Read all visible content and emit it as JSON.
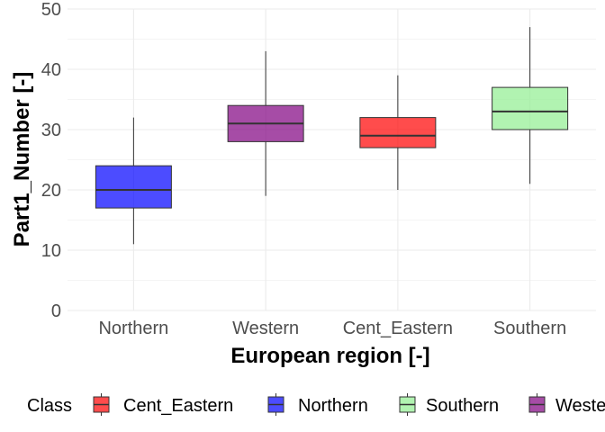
{
  "chart_data": {
    "type": "boxplot",
    "title": "",
    "xlabel": "European region [-]",
    "ylabel": "Part1_Number [-]",
    "ylim": [
      0,
      50
    ],
    "yticks": [
      0,
      10,
      20,
      30,
      40,
      50
    ],
    "grid": true,
    "legend_position": "bottom",
    "legend_title": "Class",
    "categories": [
      "Northern",
      "Western",
      "Cent_Eastern",
      "Southern"
    ],
    "boxes": [
      {
        "category": "Northern",
        "class": "Northern",
        "min": 11,
        "q1": 17,
        "median": 20,
        "q3": 24,
        "max": 32,
        "color": "#0000FF"
      },
      {
        "category": "Western",
        "class": "Western",
        "min": 19,
        "q1": 28,
        "median": 31,
        "q3": 34,
        "max": 43,
        "color": "#800080"
      },
      {
        "category": "Cent_Eastern",
        "class": "Cent_Eastern",
        "min": 20,
        "q1": 27,
        "median": 29,
        "q3": 32,
        "max": 39,
        "color": "#FF0000"
      },
      {
        "category": "Southern",
        "class": "Southern",
        "min": 21,
        "q1": 30,
        "median": 33,
        "q3": 37,
        "max": 47,
        "color": "#90EE90"
      }
    ],
    "legend": [
      {
        "label": "Cent_Eastern",
        "color": "#FF0000"
      },
      {
        "label": "Northern",
        "color": "#0000FF"
      },
      {
        "label": "Southern",
        "color": "#90EE90"
      },
      {
        "label": "Western",
        "color": "#800080"
      }
    ]
  }
}
